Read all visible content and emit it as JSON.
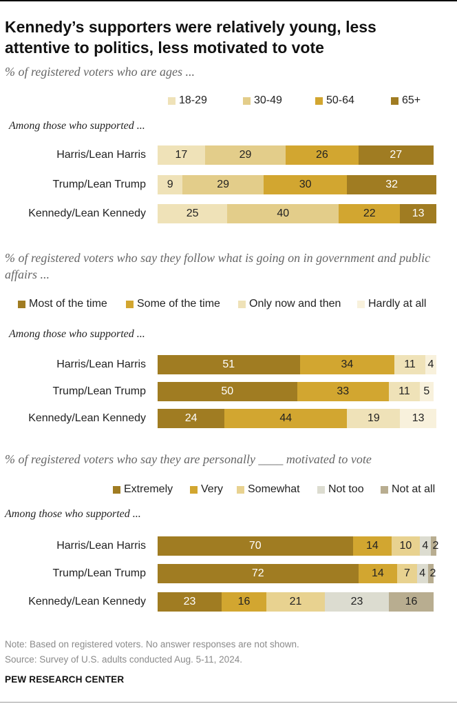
{
  "title": "Kennedy’s supporters were relatively young, less attentive to politics, less motivated to vote",
  "notes": {
    "note": "Note: Based on registered voters. No answer responses are not shown.",
    "source": "Source: Survey of U.S. adults conducted Aug. 5-11, 2024.",
    "credit": "PEW RESEARCH CENTER"
  },
  "chart_data": [
    {
      "type": "bar",
      "stacked": true,
      "orientation": "horizontal",
      "subtitle": "% of registered voters who are ages ...",
      "group_label": "Among those who supported ...",
      "categories": [
        "Harris/Lean Harris",
        "Trump/Lean Trump",
        "Kennedy/Lean Kennedy"
      ],
      "series": [
        {
          "name": "18-29",
          "color": "#efe2b8",
          "text_color": "#222222",
          "values": [
            17,
            9,
            25
          ]
        },
        {
          "name": "30-49",
          "color": "#e3cd8a",
          "text_color": "#222222",
          "values": [
            29,
            29,
            40
          ]
        },
        {
          "name": "50-64",
          "color": "#d2a630",
          "text_color": "#222222",
          "values": [
            26,
            30,
            22
          ]
        },
        {
          "name": "65+",
          "color": "#a07c22",
          "text_color": "#ffffff",
          "values": [
            27,
            32,
            13
          ]
        }
      ],
      "legend_position": "top"
    },
    {
      "type": "bar",
      "stacked": true,
      "orientation": "horizontal",
      "subtitle": "% of registered voters who say they follow what is going on in government and public affairs ...",
      "group_label": "Among those who supported ...",
      "categories": [
        "Harris/Lean Harris",
        "Trump/Lean Trump",
        "Kennedy/Lean Kennedy"
      ],
      "series": [
        {
          "name": "Most of the time",
          "color": "#a07c22",
          "text_color": "#ffffff",
          "values": [
            51,
            50,
            24
          ]
        },
        {
          "name": "Some of the time",
          "color": "#d2a630",
          "text_color": "#222222",
          "values": [
            34,
            33,
            44
          ]
        },
        {
          "name": "Only now and then",
          "color": "#efe2b8",
          "text_color": "#222222",
          "values": [
            11,
            11,
            19
          ]
        },
        {
          "name": "Hardly at all",
          "color": "#f8f1dc",
          "text_color": "#222222",
          "values": [
            4,
            5,
            13
          ]
        }
      ],
      "legend_position": "top"
    },
    {
      "type": "bar",
      "stacked": true,
      "orientation": "horizontal",
      "subtitle": "% of registered voters who say they are personally ____ motivated to vote",
      "group_label": "Among those who supported ...",
      "categories": [
        "Harris/Lean Harris",
        "Trump/Lean Trump",
        "Kennedy/Lean Kennedy"
      ],
      "series": [
        {
          "name": "Extremely",
          "color": "#a07c22",
          "text_color": "#ffffff",
          "values": [
            70,
            72,
            23
          ]
        },
        {
          "name": "Very",
          "color": "#d2a630",
          "text_color": "#222222",
          "values": [
            14,
            14,
            16
          ]
        },
        {
          "name": "Somewhat",
          "color": "#e8d290",
          "text_color": "#222222",
          "values": [
            10,
            7,
            21
          ]
        },
        {
          "name": "Not too",
          "color": "#dcdcd0",
          "text_color": "#222222",
          "values": [
            4,
            4,
            23
          ]
        },
        {
          "name": "Not at all",
          "color": "#b8ad90",
          "text_color": "#222222",
          "values": [
            2,
            2,
            16
          ]
        }
      ],
      "legend_position": "top"
    }
  ]
}
